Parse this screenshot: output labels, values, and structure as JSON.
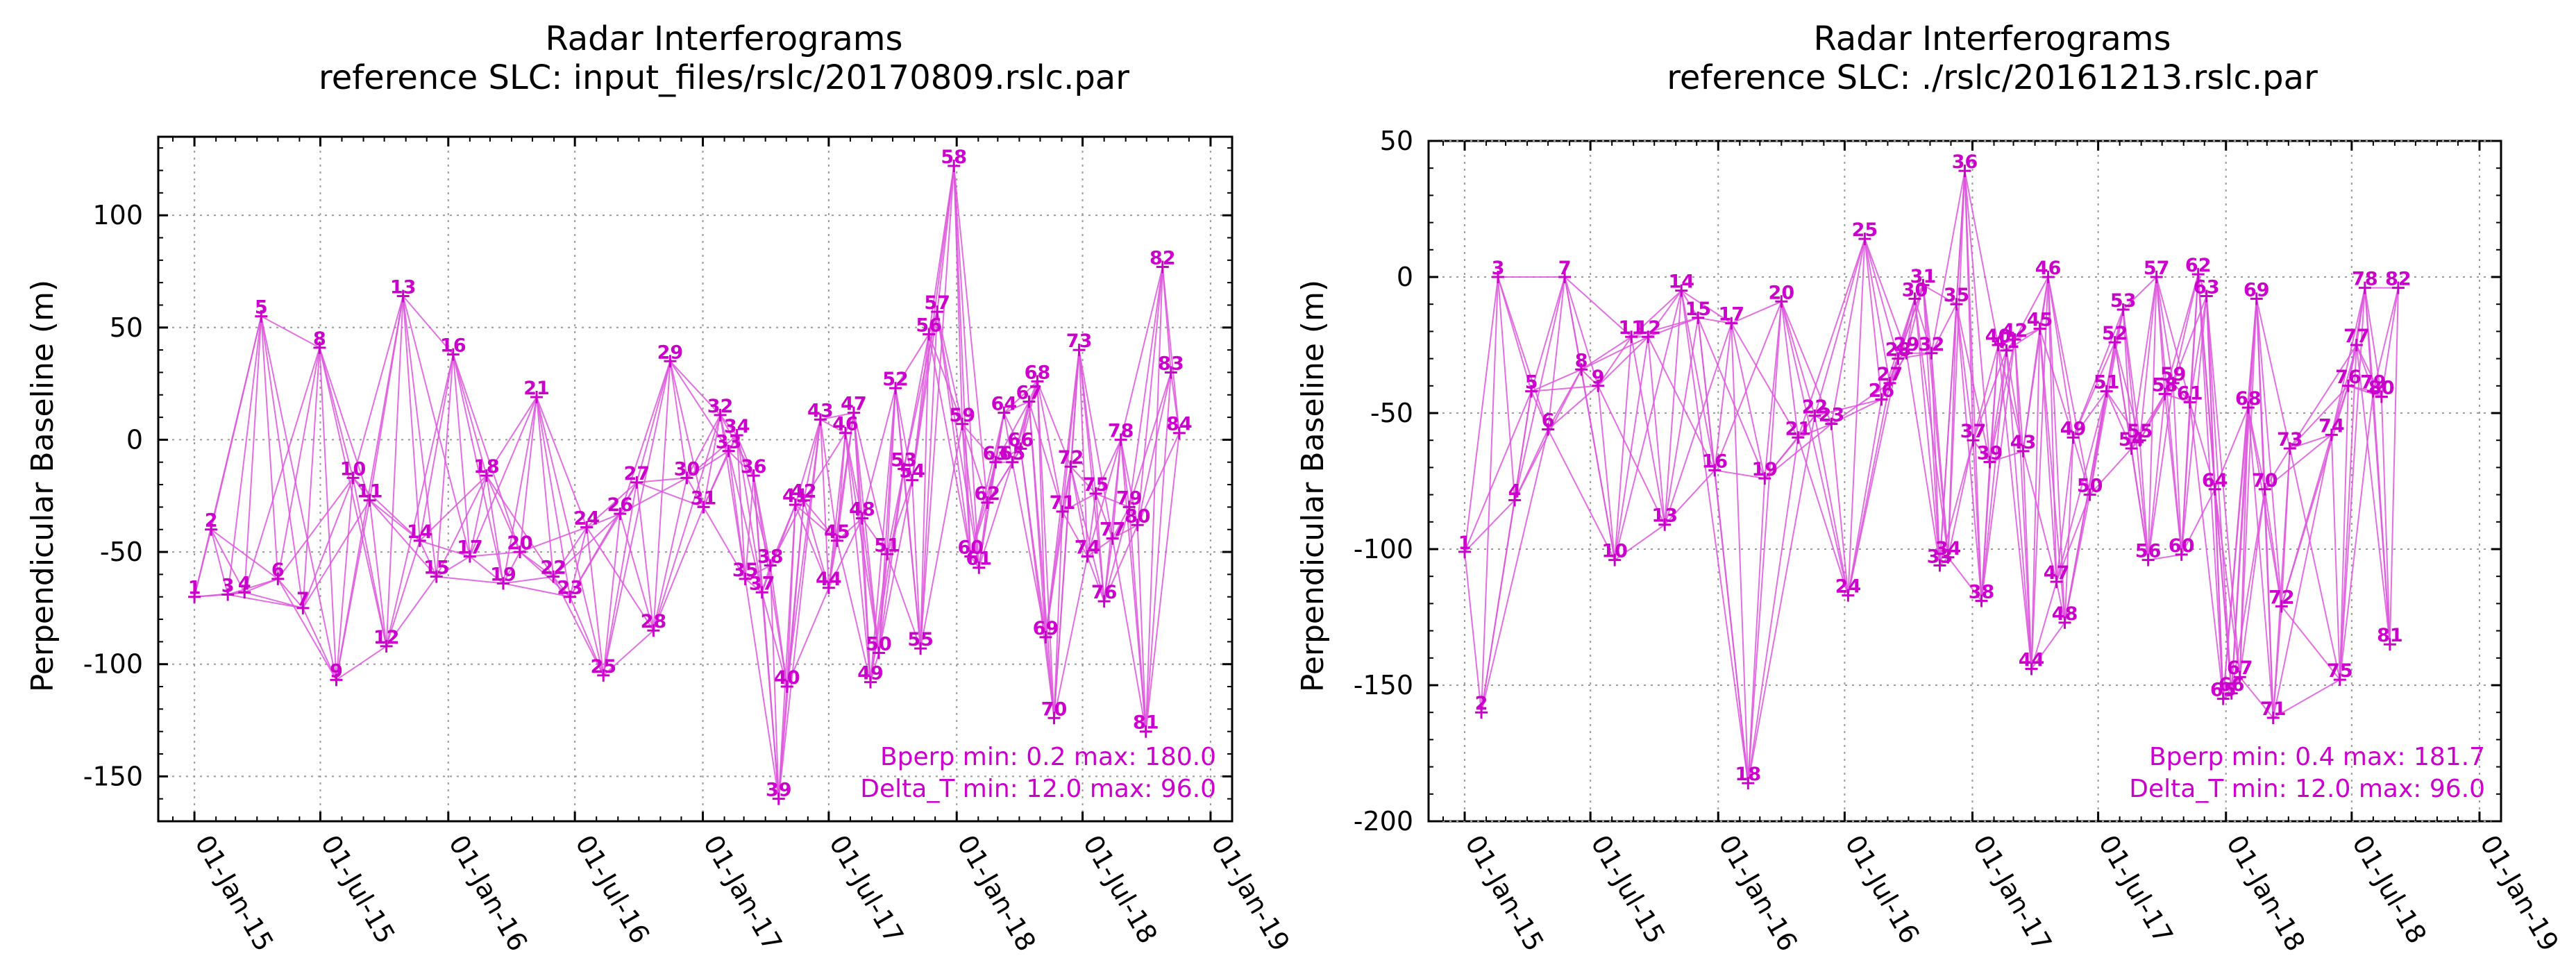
{
  "colors": {
    "series": "#cc00cc",
    "line": "#dd55dd",
    "grid": "#9a9a9a",
    "axis": "#000000"
  },
  "chart_data": [
    {
      "type": "line",
      "title": "Radar Interferograms",
      "subtitle": "reference SLC: input_files/rslc/20170809.rslc.par",
      "xlabel": "",
      "ylabel": "Perpendicular Baseline (m)",
      "x_range": [
        "2014-11-10",
        "2019-02-01"
      ],
      "xticks": [
        {
          "date": "2015-01-01",
          "label": "01-Jan-15"
        },
        {
          "date": "2015-07-01",
          "label": "01-Jul-15"
        },
        {
          "date": "2016-01-01",
          "label": "01-Jan-16"
        },
        {
          "date": "2016-07-01",
          "label": "01-Jul-16"
        },
        {
          "date": "2017-01-01",
          "label": "01-Jan-17"
        },
        {
          "date": "2017-07-01",
          "label": "01-Jul-17"
        },
        {
          "date": "2018-01-01",
          "label": "01-Jan-18"
        },
        {
          "date": "2018-07-01",
          "label": "01-Jul-18"
        },
        {
          "date": "2019-01-01",
          "label": "01-Jan-19"
        }
      ],
      "ylim": [
        -170,
        135
      ],
      "yticks": [
        -150,
        -100,
        -50,
        0,
        50,
        100
      ],
      "grid": true,
      "stats": [
        "Bperp   min:  0.2  max:  180.0",
        "Delta_T min:  12.0  max:  96.0"
      ],
      "points": [
        {
          "id": "1",
          "date": "2015-01-01",
          "bperp": -70
        },
        {
          "id": "2",
          "date": "2015-01-25",
          "bperp": -40
        },
        {
          "id": "3",
          "date": "2015-02-18",
          "bperp": -69
        },
        {
          "id": "4",
          "date": "2015-03-14",
          "bperp": -68
        },
        {
          "id": "5",
          "date": "2015-04-07",
          "bperp": 55
        },
        {
          "id": "6",
          "date": "2015-05-01",
          "bperp": -62
        },
        {
          "id": "7",
          "date": "2015-06-06",
          "bperp": -75
        },
        {
          "id": "8",
          "date": "2015-06-30",
          "bperp": 41
        },
        {
          "id": "9",
          "date": "2015-07-24",
          "bperp": -107
        },
        {
          "id": "10",
          "date": "2015-08-17",
          "bperp": -17
        },
        {
          "id": "11",
          "date": "2015-09-10",
          "bperp": -27
        },
        {
          "id": "12",
          "date": "2015-10-04",
          "bperp": -92
        },
        {
          "id": "13",
          "date": "2015-10-28",
          "bperp": 64
        },
        {
          "id": "14",
          "date": "2015-11-21",
          "bperp": -45
        },
        {
          "id": "15",
          "date": "2015-12-15",
          "bperp": -61
        },
        {
          "id": "16",
          "date": "2016-01-08",
          "bperp": 38
        },
        {
          "id": "17",
          "date": "2016-02-01",
          "bperp": -52
        },
        {
          "id": "18",
          "date": "2016-02-25",
          "bperp": -16
        },
        {
          "id": "19",
          "date": "2016-03-20",
          "bperp": -64
        },
        {
          "id": "20",
          "date": "2016-04-13",
          "bperp": -50
        },
        {
          "id": "21",
          "date": "2016-05-07",
          "bperp": 19
        },
        {
          "id": "22",
          "date": "2016-05-31",
          "bperp": -61
        },
        {
          "id": "23",
          "date": "2016-06-24",
          "bperp": -70
        },
        {
          "id": "24",
          "date": "2016-07-18",
          "bperp": -39
        },
        {
          "id": "25",
          "date": "2016-08-11",
          "bperp": -105
        },
        {
          "id": "26",
          "date": "2016-09-04",
          "bperp": -33
        },
        {
          "id": "27",
          "date": "2016-09-28",
          "bperp": -19
        },
        {
          "id": "28",
          "date": "2016-10-22",
          "bperp": -85
        },
        {
          "id": "29",
          "date": "2016-11-15",
          "bperp": 35
        },
        {
          "id": "30",
          "date": "2016-12-09",
          "bperp": -17
        },
        {
          "id": "31",
          "date": "2017-01-02",
          "bperp": -30
        },
        {
          "id": "32",
          "date": "2017-01-26",
          "bperp": 11
        },
        {
          "id": "33",
          "date": "2017-02-07",
          "bperp": -5
        },
        {
          "id": "34",
          "date": "2017-02-19",
          "bperp": 2
        },
        {
          "id": "35",
          "date": "2017-03-03",
          "bperp": -62
        },
        {
          "id": "36",
          "date": "2017-03-15",
          "bperp": -16
        },
        {
          "id": "37",
          "date": "2017-03-27",
          "bperp": -68
        },
        {
          "id": "38",
          "date": "2017-04-08",
          "bperp": -56
        },
        {
          "id": "39",
          "date": "2017-04-20",
          "bperp": -160
        },
        {
          "id": "40",
          "date": "2017-05-02",
          "bperp": -110
        },
        {
          "id": "41",
          "date": "2017-05-14",
          "bperp": -29
        },
        {
          "id": "42",
          "date": "2017-05-26",
          "bperp": -27
        },
        {
          "id": "43",
          "date": "2017-06-19",
          "bperp": 9
        },
        {
          "id": "44",
          "date": "2017-07-01",
          "bperp": -66
        },
        {
          "id": "45",
          "date": "2017-07-13",
          "bperp": -45
        },
        {
          "id": "46",
          "date": "2017-07-25",
          "bperp": 3
        },
        {
          "id": "47",
          "date": "2017-08-06",
          "bperp": 12
        },
        {
          "id": "48",
          "date": "2017-08-18",
          "bperp": -35
        },
        {
          "id": "49",
          "date": "2017-08-30",
          "bperp": -108
        },
        {
          "id": "50",
          "date": "2017-09-11",
          "bperp": -95
        },
        {
          "id": "51",
          "date": "2017-09-23",
          "bperp": -51
        },
        {
          "id": "52",
          "date": "2017-10-05",
          "bperp": 23
        },
        {
          "id": "53",
          "date": "2017-10-17",
          "bperp": -13
        },
        {
          "id": "54",
          "date": "2017-10-29",
          "bperp": -18
        },
        {
          "id": "55",
          "date": "2017-11-10",
          "bperp": -93
        },
        {
          "id": "56",
          "date": "2017-11-22",
          "bperp": 47
        },
        {
          "id": "57",
          "date": "2017-12-04",
          "bperp": 57
        },
        {
          "id": "58",
          "date": "2017-12-28",
          "bperp": 122
        },
        {
          "id": "59",
          "date": "2018-01-09",
          "bperp": 7
        },
        {
          "id": "60",
          "date": "2018-01-21",
          "bperp": -52
        },
        {
          "id": "61",
          "date": "2018-02-02",
          "bperp": -57
        },
        {
          "id": "62",
          "date": "2018-02-14",
          "bperp": -28
        },
        {
          "id": "63",
          "date": "2018-02-26",
          "bperp": -10
        },
        {
          "id": "64",
          "date": "2018-03-10",
          "bperp": 12
        },
        {
          "id": "65",
          "date": "2018-03-22",
          "bperp": -10
        },
        {
          "id": "66",
          "date": "2018-04-03",
          "bperp": -4
        },
        {
          "id": "67",
          "date": "2018-04-15",
          "bperp": 17
        },
        {
          "id": "68",
          "date": "2018-04-27",
          "bperp": 26
        },
        {
          "id": "69",
          "date": "2018-05-09",
          "bperp": -88
        },
        {
          "id": "70",
          "date": "2018-05-21",
          "bperp": -124
        },
        {
          "id": "71",
          "date": "2018-06-02",
          "bperp": -32
        },
        {
          "id": "72",
          "date": "2018-06-14",
          "bperp": -12
        },
        {
          "id": "73",
          "date": "2018-06-26",
          "bperp": 40
        },
        {
          "id": "74",
          "date": "2018-07-08",
          "bperp": -52
        },
        {
          "id": "75",
          "date": "2018-07-20",
          "bperp": -24
        },
        {
          "id": "76",
          "date": "2018-08-01",
          "bperp": -72
        },
        {
          "id": "77",
          "date": "2018-08-13",
          "bperp": -44
        },
        {
          "id": "78",
          "date": "2018-08-25",
          "bperp": 0
        },
        {
          "id": "79",
          "date": "2018-09-06",
          "bperp": -30
        },
        {
          "id": "80",
          "date": "2018-09-18",
          "bperp": -38
        },
        {
          "id": "81",
          "date": "2018-09-30",
          "bperp": -130
        },
        {
          "id": "82",
          "date": "2018-10-24",
          "bperp": 77
        },
        {
          "id": "83",
          "date": "2018-11-05",
          "bperp": 30
        },
        {
          "id": "84",
          "date": "2018-11-17",
          "bperp": 3
        }
      ]
    },
    {
      "type": "line",
      "title": "Radar Interferograms",
      "subtitle": "reference SLC: ./rslc/20161213.rslc.par",
      "xlabel": "",
      "ylabel": "Perpendicular Baseline (m)",
      "x_range": [
        "2014-11-10",
        "2019-02-01"
      ],
      "xticks": [
        {
          "date": "2015-01-01",
          "label": "01-Jan-15"
        },
        {
          "date": "2015-07-01",
          "label": "01-Jul-15"
        },
        {
          "date": "2016-01-01",
          "label": "01-Jan-16"
        },
        {
          "date": "2016-07-01",
          "label": "01-Jul-16"
        },
        {
          "date": "2017-01-01",
          "label": "01-Jan-17"
        },
        {
          "date": "2017-07-01",
          "label": "01-Jul-17"
        },
        {
          "date": "2018-01-01",
          "label": "01-Jan-18"
        },
        {
          "date": "2018-07-01",
          "label": "01-Jul-18"
        },
        {
          "date": "2019-01-01",
          "label": "01-Jan-19"
        }
      ],
      "ylim": [
        -200,
        50
      ],
      "yticks": [
        -200,
        -150,
        -100,
        -50,
        0,
        50
      ],
      "grid": true,
      "stats": [
        "Bperp   min:  0.4  max:  181.7",
        "Delta_T min:  12.0  max:  96.0"
      ],
      "points": [
        {
          "id": "1",
          "date": "2015-01-01",
          "bperp": -101
        },
        {
          "id": "2",
          "date": "2015-01-25",
          "bperp": -160
        },
        {
          "id": "3",
          "date": "2015-02-18",
          "bperp": 0
        },
        {
          "id": "4",
          "date": "2015-03-14",
          "bperp": -82
        },
        {
          "id": "5",
          "date": "2015-04-07",
          "bperp": -42
        },
        {
          "id": "6",
          "date": "2015-05-01",
          "bperp": -56
        },
        {
          "id": "7",
          "date": "2015-05-25",
          "bperp": 0
        },
        {
          "id": "8",
          "date": "2015-06-18",
          "bperp": -34
        },
        {
          "id": "9",
          "date": "2015-07-12",
          "bperp": -40
        },
        {
          "id": "10",
          "date": "2015-08-05",
          "bperp": -104
        },
        {
          "id": "11",
          "date": "2015-08-29",
          "bperp": -22
        },
        {
          "id": "12",
          "date": "2015-09-22",
          "bperp": -22
        },
        {
          "id": "13",
          "date": "2015-10-16",
          "bperp": -91
        },
        {
          "id": "14",
          "date": "2015-11-09",
          "bperp": -5
        },
        {
          "id": "15",
          "date": "2015-12-03",
          "bperp": -15
        },
        {
          "id": "16",
          "date": "2015-12-27",
          "bperp": -71
        },
        {
          "id": "17",
          "date": "2016-01-20",
          "bperp": -17
        },
        {
          "id": "18",
          "date": "2016-02-13",
          "bperp": -186
        },
        {
          "id": "19",
          "date": "2016-03-08",
          "bperp": -74
        },
        {
          "id": "20",
          "date": "2016-04-01",
          "bperp": -9
        },
        {
          "id": "21",
          "date": "2016-04-25",
          "bperp": -59
        },
        {
          "id": "22",
          "date": "2016-05-19",
          "bperp": -51
        },
        {
          "id": "23",
          "date": "2016-06-12",
          "bperp": -54
        },
        {
          "id": "24",
          "date": "2016-07-06",
          "bperp": -117
        },
        {
          "id": "25",
          "date": "2016-07-30",
          "bperp": 14
        },
        {
          "id": "26",
          "date": "2016-08-23",
          "bperp": -45
        },
        {
          "id": "27",
          "date": "2016-09-04",
          "bperp": -39
        },
        {
          "id": "28",
          "date": "2016-09-16",
          "bperp": -30
        },
        {
          "id": "29",
          "date": "2016-09-28",
          "bperp": -28
        },
        {
          "id": "30",
          "date": "2016-10-10",
          "bperp": -8
        },
        {
          "id": "31",
          "date": "2016-10-22",
          "bperp": -3
        },
        {
          "id": "32",
          "date": "2016-11-03",
          "bperp": -28
        },
        {
          "id": "33",
          "date": "2016-11-15",
          "bperp": -106
        },
        {
          "id": "34",
          "date": "2016-11-27",
          "bperp": -103
        },
        {
          "id": "35",
          "date": "2016-12-09",
          "bperp": -10
        },
        {
          "id": "36",
          "date": "2016-12-21",
          "bperp": 39
        },
        {
          "id": "37",
          "date": "2017-01-02",
          "bperp": -60
        },
        {
          "id": "38",
          "date": "2017-01-14",
          "bperp": -119
        },
        {
          "id": "39",
          "date": "2017-01-26",
          "bperp": -68
        },
        {
          "id": "40",
          "date": "2017-02-07",
          "bperp": -25
        },
        {
          "id": "41",
          "date": "2017-02-19",
          "bperp": -27
        },
        {
          "id": "42",
          "date": "2017-03-03",
          "bperp": -23
        },
        {
          "id": "43",
          "date": "2017-03-15",
          "bperp": -64
        },
        {
          "id": "44",
          "date": "2017-03-27",
          "bperp": -144
        },
        {
          "id": "45",
          "date": "2017-04-08",
          "bperp": -19
        },
        {
          "id": "46",
          "date": "2017-04-20",
          "bperp": 0
        },
        {
          "id": "47",
          "date": "2017-05-02",
          "bperp": -112
        },
        {
          "id": "48",
          "date": "2017-05-14",
          "bperp": -127
        },
        {
          "id": "49",
          "date": "2017-05-26",
          "bperp": -59
        },
        {
          "id": "50",
          "date": "2017-06-19",
          "bperp": -80
        },
        {
          "id": "51",
          "date": "2017-07-13",
          "bperp": -42
        },
        {
          "id": "52",
          "date": "2017-07-25",
          "bperp": -24
        },
        {
          "id": "53",
          "date": "2017-08-06",
          "bperp": -12
        },
        {
          "id": "54",
          "date": "2017-08-18",
          "bperp": -63
        },
        {
          "id": "55",
          "date": "2017-08-30",
          "bperp": -60
        },
        {
          "id": "56",
          "date": "2017-09-11",
          "bperp": -104
        },
        {
          "id": "57",
          "date": "2017-09-23",
          "bperp": 0
        },
        {
          "id": "58",
          "date": "2017-10-05",
          "bperp": -43
        },
        {
          "id": "59",
          "date": "2017-10-17",
          "bperp": -39
        },
        {
          "id": "60",
          "date": "2017-10-29",
          "bperp": -102
        },
        {
          "id": "61",
          "date": "2017-11-10",
          "bperp": -46
        },
        {
          "id": "62",
          "date": "2017-11-22",
          "bperp": 1
        },
        {
          "id": "63",
          "date": "2017-12-04",
          "bperp": -7
        },
        {
          "id": "64",
          "date": "2017-12-16",
          "bperp": -78
        },
        {
          "id": "65",
          "date": "2017-12-28",
          "bperp": -155
        },
        {
          "id": "66",
          "date": "2018-01-09",
          "bperp": -153
        },
        {
          "id": "67",
          "date": "2018-01-21",
          "bperp": -147
        },
        {
          "id": "68",
          "date": "2018-02-02",
          "bperp": -48
        },
        {
          "id": "69",
          "date": "2018-02-14",
          "bperp": -8
        },
        {
          "id": "70",
          "date": "2018-02-26",
          "bperp": -78
        },
        {
          "id": "71",
          "date": "2018-03-10",
          "bperp": -162
        },
        {
          "id": "72",
          "date": "2018-03-22",
          "bperp": -121
        },
        {
          "id": "73",
          "date": "2018-04-03",
          "bperp": -63
        },
        {
          "id": "74",
          "date": "2018-06-02",
          "bperp": -58
        },
        {
          "id": "75",
          "date": "2018-06-14",
          "bperp": -148
        },
        {
          "id": "76",
          "date": "2018-06-26",
          "bperp": -40
        },
        {
          "id": "77",
          "date": "2018-07-08",
          "bperp": -25
        },
        {
          "id": "78",
          "date": "2018-07-20",
          "bperp": -4
        },
        {
          "id": "79",
          "date": "2018-08-01",
          "bperp": -42
        },
        {
          "id": "80",
          "date": "2018-08-13",
          "bperp": -44
        },
        {
          "id": "81",
          "date": "2018-08-25",
          "bperp": -135
        },
        {
          "id": "82",
          "date": "2018-09-06",
          "bperp": -4
        }
      ]
    }
  ]
}
